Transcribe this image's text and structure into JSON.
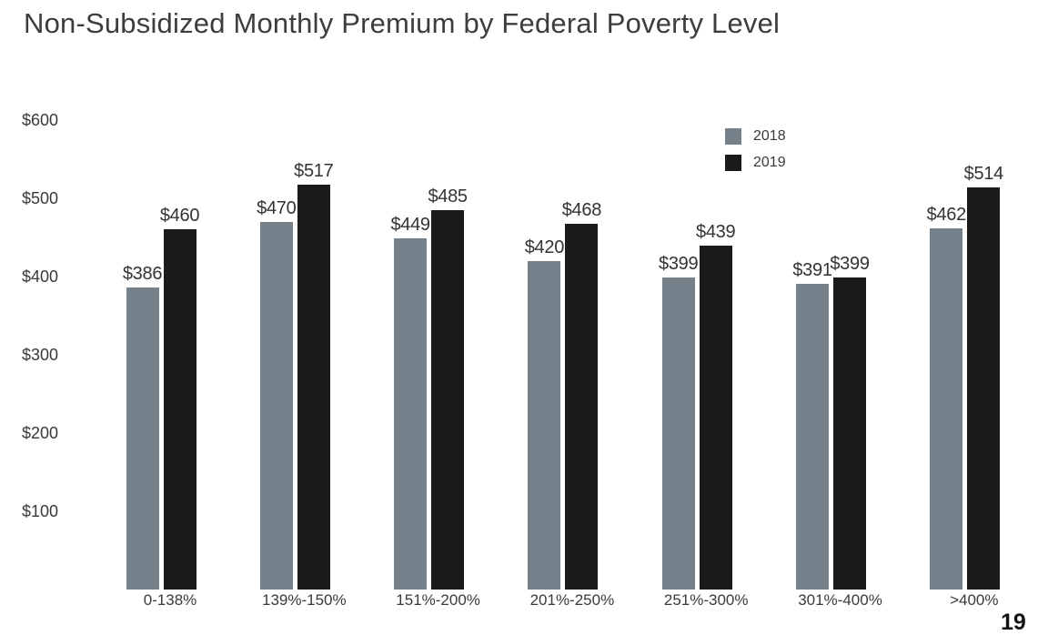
{
  "page_number": "19",
  "chart_data": {
    "type": "bar",
    "title": "Non-Subsidized Monthly Premium by Federal Poverty Level",
    "categories": [
      "0-138%",
      "139%-150%",
      "151%-200%",
      "201%-250%",
      "251%-300%",
      "301%-400%",
      ">400%"
    ],
    "series": [
      {
        "name": "2018",
        "color": "#74808a",
        "values": [
          386,
          470,
          449,
          420,
          399,
          391,
          462
        ]
      },
      {
        "name": "2019",
        "color": "#1d1a1b",
        "values": [
          460,
          517,
          485,
          468,
          439,
          399,
          514
        ]
      }
    ],
    "value_prefix": "$",
    "data_labels": true,
    "yticks": [
      {
        "label": "$600",
        "value": 600
      },
      {
        "label": "$500",
        "value": 500
      },
      {
        "label": "$400",
        "value": 400
      },
      {
        "label": "$300",
        "value": 300
      },
      {
        "label": "$200",
        "value": 200
      },
      {
        "label": "$100",
        "value": 100
      }
    ],
    "ylim": [
      0,
      600
    ],
    "grid": false,
    "axis_lines": false,
    "legend_position": "top-right",
    "text_color": "#3a3a3a"
  }
}
